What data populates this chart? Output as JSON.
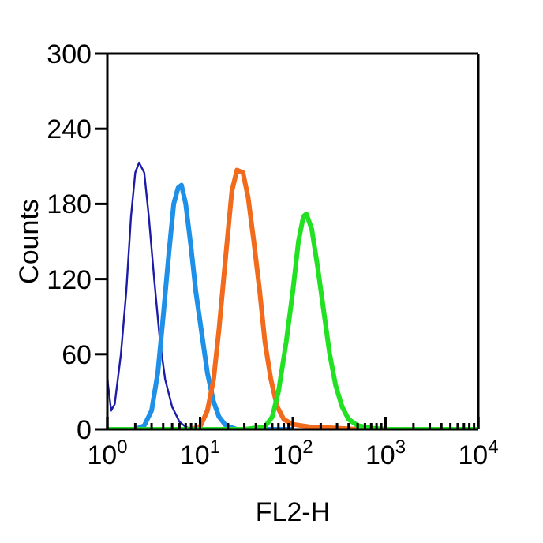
{
  "chart_data": {
    "type": "line",
    "xlabel": "FL2-H",
    "ylabel": "Counts",
    "log": "x",
    "xlim": [
      1,
      10000
    ],
    "ylim": [
      0,
      300
    ],
    "yticks": [
      0,
      60,
      120,
      180,
      240,
      300
    ],
    "grid": false,
    "marker": "none",
    "line_style": "solid",
    "xticks": [
      {
        "value": 1,
        "label": "10$^{0}$"
      },
      {
        "value": 2,
        "label": null
      },
      {
        "value": 3,
        "label": null
      },
      {
        "value": 4,
        "label": null
      },
      {
        "value": 5,
        "label": null
      },
      {
        "value": 6,
        "label": null
      },
      {
        "value": 7,
        "label": null
      },
      {
        "value": 8,
        "label": null
      },
      {
        "value": 9,
        "label": null
      },
      {
        "value": 10,
        "label": "10$^{1}$"
      },
      {
        "value": 20,
        "label": null
      },
      {
        "value": 30,
        "label": null
      },
      {
        "value": 40,
        "label": null
      },
      {
        "value": 50,
        "label": null
      },
      {
        "value": 60,
        "label": null
      },
      {
        "value": 70,
        "label": null
      },
      {
        "value": 80,
        "label": null
      },
      {
        "value": 90,
        "label": null
      },
      {
        "value": 100,
        "label": "10$^{2}$"
      },
      {
        "value": 200,
        "label": null
      },
      {
        "value": 300,
        "label": null
      },
      {
        "value": 400,
        "label": null
      },
      {
        "value": 500,
        "label": null
      },
      {
        "value": 600,
        "label": null
      },
      {
        "value": 700,
        "label": null
      },
      {
        "value": 800,
        "label": null
      },
      {
        "value": 900,
        "label": null
      },
      {
        "value": 1000,
        "label": "10$^{3}$"
      },
      {
        "value": 2000,
        "label": null
      },
      {
        "value": 3000,
        "label": null
      },
      {
        "value": 4000,
        "label": null
      },
      {
        "value": 5000,
        "label": null
      },
      {
        "value": 6000,
        "label": null
      },
      {
        "value": 7000,
        "label": null
      },
      {
        "value": 8000,
        "label": null
      },
      {
        "value": 9000,
        "label": null
      },
      {
        "value": 10000,
        "label": "10$^{4}$"
      }
    ],
    "series": [
      {
        "color": "#1c1ca8",
        "x": [
          1,
          1.1,
          1.2,
          1.4,
          1.6,
          1.8,
          2,
          2.2,
          2.5,
          2.8,
          3.2,
          3.7,
          4.2,
          5,
          6,
          7,
          8.3,
          30
        ],
        "values": [
          40,
          15,
          20,
          60,
          110,
          170,
          205,
          213,
          205,
          170,
          120,
          70,
          40,
          18,
          6,
          2,
          0,
          0
        ]
      },
      {
        "color": "#1e90e8",
        "x": [
          1,
          2,
          2.5,
          3,
          3.5,
          4,
          4.6,
          5.2,
          5.8,
          6.3,
          7,
          8,
          9,
          10.5,
          12,
          14,
          16,
          19,
          25,
          100
        ],
        "values": [
          0,
          0,
          3,
          15,
          45,
          90,
          140,
          180,
          193,
          195,
          180,
          145,
          110,
          75,
          45,
          22,
          10,
          3,
          0,
          0
        ]
      },
      {
        "color": "#f26a1b",
        "x": [
          1,
          8,
          10,
          12,
          14,
          16,
          19,
          22,
          25,
          29,
          33,
          38,
          44,
          50,
          58,
          68,
          80,
          100,
          150,
          300,
          500
        ],
        "values": [
          0,
          0,
          2,
          15,
          40,
          80,
          140,
          190,
          207,
          205,
          185,
          150,
          110,
          70,
          40,
          18,
          8,
          4,
          2,
          1,
          0
        ]
      },
      {
        "color": "#22e022",
        "x": [
          1,
          30,
          50,
          60,
          70,
          85,
          100,
          115,
          130,
          140,
          160,
          185,
          215,
          250,
          290,
          340,
          400,
          500,
          700,
          1000,
          10000
        ],
        "values": [
          0,
          0,
          2,
          10,
          30,
          70,
          110,
          150,
          170,
          172,
          160,
          130,
          95,
          60,
          35,
          18,
          8,
          3,
          1,
          0,
          0
        ]
      }
    ]
  }
}
